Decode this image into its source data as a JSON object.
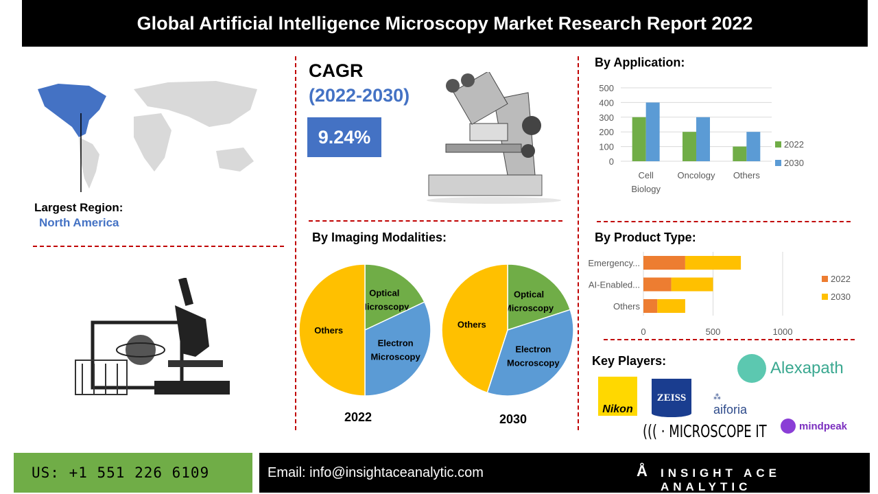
{
  "title": "Global Artificial Intelligence Microscopy Market Research Report 2022",
  "region": {
    "label": "Largest Region:",
    "value": "North America"
  },
  "cagr": {
    "label": "CAGR",
    "period": "(2022-2030)",
    "value": "9.24%"
  },
  "colors": {
    "accent_blue": "#4472c4",
    "green": "#70ad47",
    "orange": "#ed7d31",
    "yellow": "#ffc000",
    "light_blue": "#5b9bd5",
    "divider": "#c00000"
  },
  "application": {
    "heading": "By Application:"
  },
  "imaging": {
    "heading": "By Imaging Modalities:",
    "years": [
      "2022",
      "2030"
    ]
  },
  "product": {
    "heading": "By Product Type:"
  },
  "key_players": {
    "heading": "Key Players:",
    "logos": [
      "Nikon",
      "ZEISS",
      "aiforia",
      "Alexapath",
      "MICROSCOPE IT",
      "mindpeak"
    ]
  },
  "footer": {
    "phone": "US: +1 551 226 6109",
    "email": "Email: info@insightaceanalytic.com",
    "brand": "INSIGHT ACE ANALYTIC"
  },
  "chart_data": [
    {
      "type": "bar",
      "title": "By Application:",
      "categories": [
        "Cell Biology",
        "Oncology",
        "Others"
      ],
      "category_labels": [
        [
          "Cell",
          "Biology"
        ],
        [
          "Oncology"
        ],
        [
          "Others"
        ]
      ],
      "series": [
        {
          "name": "2022",
          "values": [
            300,
            200,
            100
          ],
          "color": "#70ad47"
        },
        {
          "name": "2030",
          "values": [
            400,
            300,
            200
          ],
          "color": "#5b9bd5"
        }
      ],
      "ylim": [
        0,
        500
      ],
      "yticks": [
        "0",
        "100",
        "200",
        "300",
        "400",
        "500"
      ],
      "grid": true,
      "legend": "right"
    },
    {
      "type": "bar",
      "orientation": "horizontal",
      "stacked": true,
      "title": "By Product Type:",
      "categories": [
        "Emergency...",
        "AI-Enabled...",
        "Others"
      ],
      "series": [
        {
          "name": "2022",
          "values": [
            300,
            200,
            100
          ],
          "color": "#ed7d31"
        },
        {
          "name": "2030",
          "values": [
            400,
            300,
            200
          ],
          "color": "#ffc000"
        }
      ],
      "xlim": [
        0,
        1000
      ],
      "xticks": [
        "0",
        "500",
        "1000"
      ],
      "grid": true,
      "legend": "right"
    },
    {
      "type": "pie",
      "title": "2022",
      "slices": [
        {
          "label": "Optical Microscopy",
          "value": 18,
          "color": "#70ad47"
        },
        {
          "label": "Electron Microscopy",
          "value": 32,
          "color": "#5b9bd5"
        },
        {
          "label": "Others",
          "value": 50,
          "color": "#ffc000"
        }
      ]
    },
    {
      "type": "pie",
      "title": "2030",
      "slices": [
        {
          "label": "Optical Microscopy",
          "value": 20,
          "color": "#70ad47"
        },
        {
          "label": "Electron Mocroscopy",
          "value": 35,
          "color": "#5b9bd5"
        },
        {
          "label": "Others",
          "value": 45,
          "color": "#ffc000"
        }
      ]
    }
  ]
}
